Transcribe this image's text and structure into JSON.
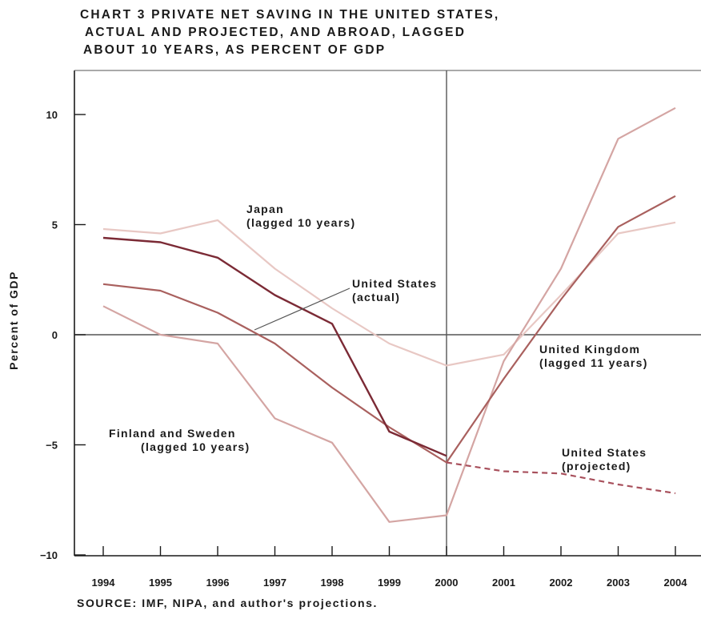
{
  "title_lines": [
    "CHART 3   PRIVATE NET SAVING IN THE UNITED STATES,",
    "ACTUAL AND PROJECTED, AND ABROAD, LAGGED",
    "ABOUT 10 YEARS, AS PERCENT OF GDP"
  ],
  "source": "SOURCE: IMF, NIPA, and author's projections.",
  "chart_data": {
    "type": "line",
    "ylabel": "Percent of GDP",
    "xlabel": "",
    "x": [
      1994,
      1995,
      1996,
      1997,
      1998,
      1999,
      2000,
      2001,
      2002,
      2003,
      2004
    ],
    "x_tick_labels": [
      "1994",
      "1995",
      "1996",
      "1997",
      "1998",
      "1999",
      "2000",
      "2001",
      "2002",
      "2003",
      "2004"
    ],
    "ylim": [
      -10,
      12
    ],
    "y_ticks": [
      10,
      5,
      0,
      -5,
      -10
    ],
    "y_tick_labels": [
      "10",
      "5",
      "0",
      "−5",
      "−10"
    ],
    "reference_lines": {
      "y": 0,
      "x": 2000
    },
    "grid": false,
    "series": [
      {
        "key": "japan",
        "label_lines": [
          "Japan",
          "(lagged 10 years)"
        ],
        "color": "#e8c8c4",
        "x": [
          1994,
          1995,
          1996,
          1997,
          1998,
          1999,
          2000,
          2001,
          2002,
          2003,
          2004
        ],
        "values": [
          4.8,
          4.6,
          5.2,
          3.0,
          1.2,
          -0.4,
          -1.4,
          -0.9,
          1.8,
          4.6,
          5.1
        ]
      },
      {
        "key": "us_actual",
        "label_lines": [
          "United States",
          "(actual)"
        ],
        "color": "#7b2a35",
        "x": [
          1994,
          1995,
          1996,
          1997,
          1998,
          1999,
          2000
        ],
        "values": [
          4.4,
          4.2,
          3.5,
          1.8,
          0.5,
          -4.4,
          -5.5
        ]
      },
      {
        "key": "us_projected",
        "label_lines": [
          "United States",
          "(projected)"
        ],
        "color": "#a8505c",
        "dashed": true,
        "x": [
          2000,
          2001,
          2002,
          2003,
          2004
        ],
        "values": [
          -5.8,
          -6.2,
          -6.3,
          -6.8,
          -7.2
        ]
      },
      {
        "key": "uk",
        "label_lines": [
          "United Kingdom",
          "(lagged 11 years)"
        ],
        "color": "#a9605e",
        "x": [
          1994,
          1995,
          1996,
          1997,
          1998,
          1999,
          2000,
          2001,
          2002,
          2003,
          2004
        ],
        "values": [
          2.3,
          2.0,
          1.0,
          -0.4,
          -2.4,
          -4.2,
          -5.8,
          -2.0,
          1.6,
          4.9,
          6.3
        ]
      },
      {
        "key": "finland_sweden",
        "label_lines": [
          "Finland and Sweden",
          "(lagged 10 years)"
        ],
        "color": "#d4a5a3",
        "x": [
          1994,
          1995,
          1996,
          1997,
          1998,
          1999,
          2000,
          2001,
          2002,
          2003,
          2004
        ],
        "values": [
          1.3,
          0.0,
          -0.4,
          -3.8,
          -4.9,
          -8.5,
          -8.2,
          -1.2,
          3.0,
          8.9,
          10.3
        ]
      }
    ]
  }
}
